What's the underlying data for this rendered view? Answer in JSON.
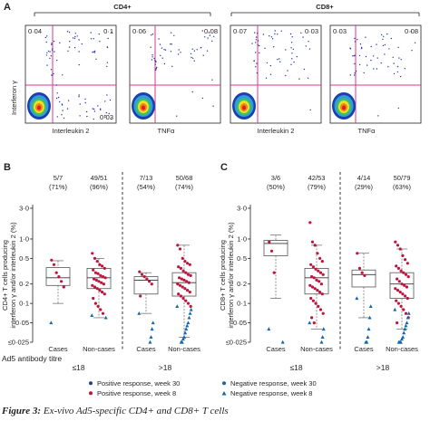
{
  "panelA": {
    "letter": "A",
    "group_labels": [
      "CD4+",
      "CD8+"
    ],
    "ylabel": "Interferon γ",
    "plots": [
      {
        "xlabel": "Interleukin 2",
        "q_tl": "0·04",
        "q_tr": "0·1",
        "q_br": "0·03",
        "q_bl": ""
      },
      {
        "xlabel": "TNFα",
        "q_tl": "0·06",
        "q_tr": "0·08",
        "q_br": "",
        "q_bl": ""
      },
      {
        "xlabel": "Interleukin 2",
        "q_tl": "0·07",
        "q_tr": "0·03",
        "q_br": "",
        "q_bl": ""
      },
      {
        "xlabel": "TNFα",
        "q_tl": "0·03",
        "q_tr": "0·08",
        "q_br": "",
        "q_bl": ""
      }
    ]
  },
  "panelB": {
    "letter": "B",
    "ylabel": [
      "CD4+ T cells producing",
      "interferon γ and/or interleukin 2 (%)"
    ],
    "yticks": [
      "3·0",
      "1·0",
      "0·5",
      "0·2",
      "0·1",
      "0·05",
      "≤0·025"
    ],
    "counts": [
      {
        "frac": "5/7",
        "pct": "(71%)"
      },
      {
        "frac": "49/51",
        "pct": "(96%)"
      },
      {
        "frac": "7/13",
        "pct": "(54%)"
      },
      {
        "frac": "50/68",
        "pct": "(74%)"
      }
    ],
    "xlabels": [
      "Cases",
      "Non-cases",
      "Cases",
      "Non-cases"
    ],
    "titre_groups": [
      "≤18",
      ">18"
    ],
    "titre_label": "Ad5 antibody titre"
  },
  "panelC": {
    "letter": "C",
    "ylabel": [
      "CD8+ T cells producing",
      "interferon γ and/or interleukin 2 (%)"
    ],
    "yticks": [
      "3·0",
      "1·0",
      "0·5",
      "0·2",
      "0·1",
      "0·05",
      "≤0·025"
    ],
    "counts": [
      {
        "frac": "3/6",
        "pct": "(50%)"
      },
      {
        "frac": "42/53",
        "pct": "(79%)"
      },
      {
        "frac": "4/14",
        "pct": "(29%)"
      },
      {
        "frac": "50/79",
        "pct": "(63%)"
      }
    ],
    "xlabels": [
      "Cases",
      "Non-cases",
      "Cases",
      "Non-cases"
    ],
    "titre_groups": [
      "≤18",
      ">18"
    ]
  },
  "legend": [
    {
      "label": "Positive response, week 30",
      "marker": "circle",
      "color": "#1f3f8f"
    },
    {
      "label": "Negative response, week 30",
      "marker": "circle",
      "color": "#1565b0"
    },
    {
      "label": "Positive response, week 8",
      "marker": "circle",
      "color": "#c0143c"
    },
    {
      "label": "Negative response, week 8",
      "marker": "triangle",
      "color": "#1565b0"
    }
  ],
  "caption": {
    "prefix": "Figure 3:",
    "text": " Ex-vivo Ad5-specific CD4+ and CD8+ T cells"
  },
  "colors": {
    "accent_pink": "#d6388f",
    "positive_red": "#c0143c",
    "negative_blue": "#1565b0",
    "box_grey": "#bbbbbb"
  },
  "chart_data": [
    {
      "type": "scatter",
      "panel": "B",
      "yscale": "log",
      "ylim": [
        0.025,
        3.0
      ],
      "categories": [
        "Cases ≤18",
        "Non-cases ≤18",
        "Cases >18",
        "Non-cases >18"
      ],
      "boxes": [
        {
          "q1": 0.19,
          "median": 0.25,
          "q3": 0.36,
          "whisker_low": 0.1,
          "whisker_high": 0.46
        },
        {
          "q1": 0.17,
          "median": 0.25,
          "q3": 0.35,
          "whisker_low": 0.06,
          "whisker_high": 0.5
        },
        {
          "q1": 0.14,
          "median": 0.23,
          "q3": 0.26,
          "whisker_low": 0.07,
          "whisker_high": 0.3
        },
        {
          "q1": 0.13,
          "median": 0.21,
          "q3": 0.3,
          "whisker_low": 0.03,
          "whisker_high": 0.8
        }
      ],
      "series": [
        {
          "name": "Positive response",
          "values": [
            [
              0.47,
              0.4,
              0.3,
              0.26,
              0.22,
              0.18
            ],
            [
              0.6,
              0.5,
              0.45,
              0.4,
              0.38,
              0.35,
              0.33,
              0.3,
              0.29,
              0.27,
              0.26,
              0.25,
              0.24,
              0.23,
              0.22,
              0.21,
              0.2,
              0.19,
              0.18,
              0.17,
              0.16,
              0.15,
              0.14,
              0.12,
              0.1,
              0.09,
              0.08,
              0.07
            ],
            [
              0.31,
              0.28,
              0.26,
              0.24,
              0.22,
              0.2,
              0.13
            ],
            [
              0.8,
              0.7,
              0.5,
              0.45,
              0.42,
              0.4,
              0.37,
              0.35,
              0.32,
              0.3,
              0.28,
              0.27,
              0.25,
              0.24,
              0.23,
              0.22,
              0.21,
              0.2,
              0.19,
              0.18,
              0.17,
              0.16,
              0.15,
              0.14,
              0.13,
              0.12,
              0.11,
              0.1,
              0.09
            ]
          ]
        },
        {
          "name": "Negative response",
          "values": [
            [
              0.05
            ],
            [
              0.065,
              0.06
            ],
            [
              0.07,
              0.05,
              0.04,
              0.03,
              0.025
            ],
            [
              0.09,
              0.08,
              0.07,
              0.06,
              0.05,
              0.045,
              0.04,
              0.035,
              0.03,
              0.028,
              0.025,
              0.025
            ]
          ]
        }
      ]
    },
    {
      "type": "scatter",
      "panel": "C",
      "yscale": "log",
      "ylim": [
        0.025,
        3.0
      ],
      "categories": [
        "Cases ≤18",
        "Non-cases ≤18",
        "Cases >18",
        "Non-cases >18"
      ],
      "boxes": [
        {
          "q1": 0.55,
          "median": 0.85,
          "q3": 0.95,
          "whisker_low": 0.12,
          "whisker_high": 1.15
        },
        {
          "q1": 0.14,
          "median": 0.25,
          "q3": 0.35,
          "whisker_low": 0.04,
          "whisker_high": 0.8
        },
        {
          "q1": 0.18,
          "median": 0.28,
          "q3": 0.33,
          "whisker_low": 0.06,
          "whisker_high": 0.6
        },
        {
          "q1": 0.12,
          "median": 0.2,
          "q3": 0.3,
          "whisker_low": 0.04,
          "whisker_high": 0.7
        }
      ],
      "series": [
        {
          "name": "Positive response",
          "values": [
            [
              0.9,
              0.65,
              0.3
            ],
            [
              1.8,
              0.9,
              0.8,
              0.6,
              0.5,
              0.45,
              0.4,
              0.37,
              0.34,
              0.32,
              0.3,
              0.28,
              0.26,
              0.25,
              0.23,
              0.22,
              0.2,
              0.19,
              0.18,
              0.17,
              0.16,
              0.15,
              0.14,
              0.12,
              0.11,
              0.1,
              0.09,
              0.08,
              0.07,
              0.06,
              0.05
            ],
            [
              0.6,
              0.35,
              0.3,
              0.27
            ],
            [
              0.9,
              0.8,
              0.7,
              0.55,
              0.48,
              0.42,
              0.38,
              0.35,
              0.32,
              0.3,
              0.28,
              0.26,
              0.24,
              0.22,
              0.2,
              0.19,
              0.18,
              0.17,
              0.16,
              0.15,
              0.14,
              0.13,
              0.12,
              0.11,
              0.1,
              0.09,
              0.08,
              0.07,
              0.06,
              0.05
            ]
          ]
        },
        {
          "name": "Negative response",
          "values": [
            [
              0.04,
              0.025
            ],
            [
              0.05,
              0.04,
              0.03,
              0.025
            ],
            [
              0.12,
              0.09,
              0.06,
              0.04,
              0.03,
              0.025,
              0.025
            ],
            [
              0.08,
              0.07,
              0.06,
              0.05,
              0.045,
              0.04,
              0.035,
              0.03,
              0.028,
              0.025,
              0.025,
              0.025
            ]
          ]
        }
      ]
    }
  ]
}
